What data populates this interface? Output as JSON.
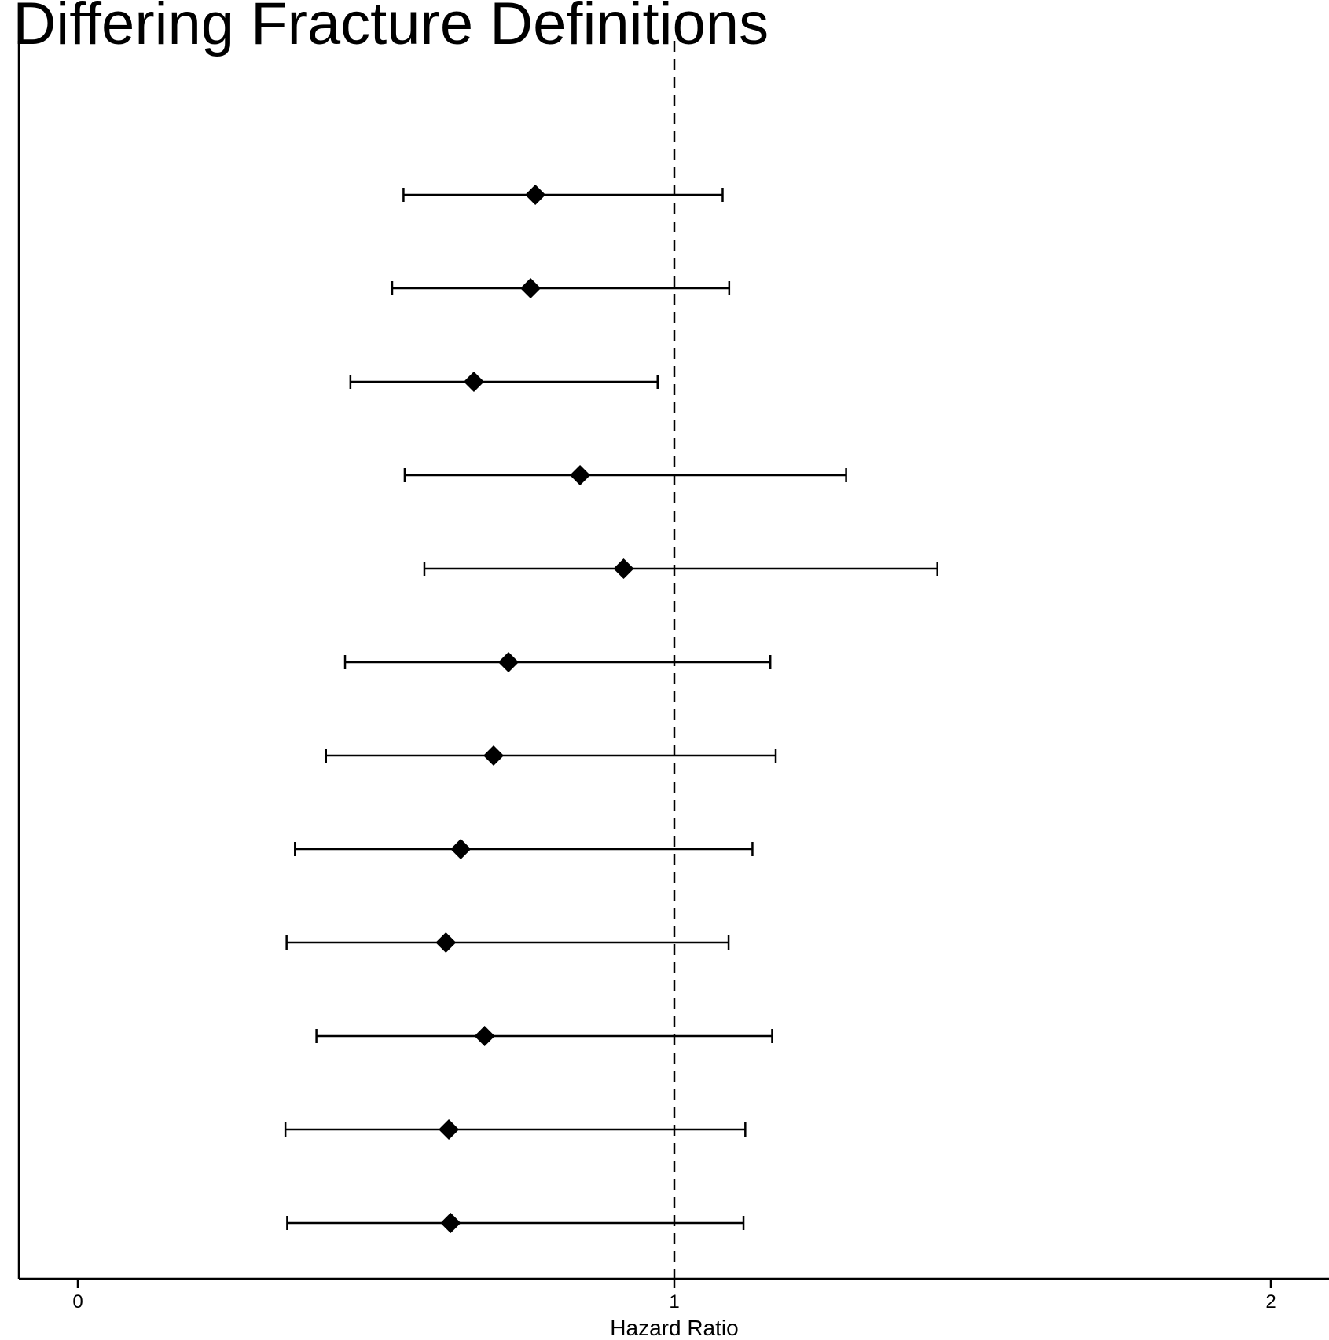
{
  "chart_data": {
    "type": "forest",
    "title": "r Differing Fracture Definitions",
    "xlabel": "Hazard Ratio",
    "ylabel": "",
    "xlim": [
      -0.1,
      2.1
    ],
    "xticks": [
      0,
      1,
      2
    ],
    "xtick_labels": [
      "0",
      "1",
      "2"
    ],
    "reference_line": 1,
    "grid": false,
    "series": [
      {
        "points": [
          {
            "estimate": 0.767,
            "lower": 0.546,
            "upper": 1.081
          },
          {
            "estimate": 0.759,
            "lower": 0.527,
            "upper": 1.092
          },
          {
            "estimate": 0.664,
            "lower": 0.457,
            "upper": 0.972
          },
          {
            "estimate": 0.842,
            "lower": 0.548,
            "upper": 1.288
          },
          {
            "estimate": 0.915,
            "lower": 0.581,
            "upper": 1.441
          },
          {
            "estimate": 0.722,
            "lower": 0.448,
            "upper": 1.161
          },
          {
            "estimate": 0.697,
            "lower": 0.416,
            "upper": 1.17
          },
          {
            "estimate": 0.642,
            "lower": 0.364,
            "upper": 1.131
          },
          {
            "estimate": 0.617,
            "lower": 0.35,
            "upper": 1.091
          },
          {
            "estimate": 0.682,
            "lower": 0.4,
            "upper": 1.164
          },
          {
            "estimate": 0.622,
            "lower": 0.348,
            "upper": 1.119
          },
          {
            "estimate": 0.625,
            "lower": 0.351,
            "upper": 1.116
          }
        ]
      }
    ]
  },
  "colors": {
    "ink": "#000000",
    "background": "#ffffff"
  }
}
